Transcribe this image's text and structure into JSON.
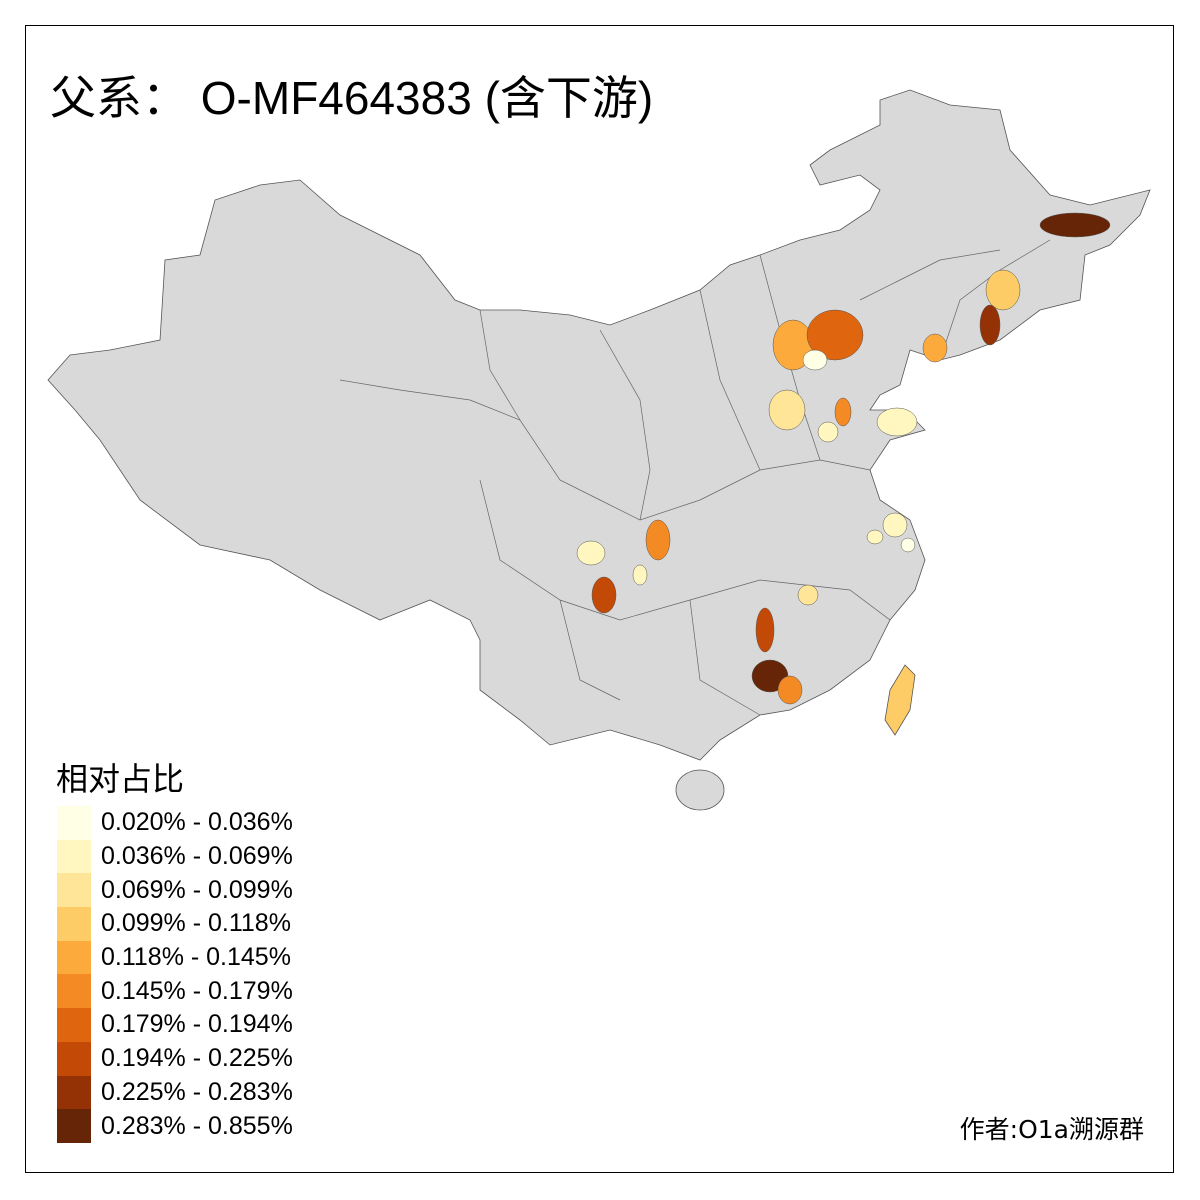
{
  "title": "父系： O-MF464383 (含下游)",
  "legend": {
    "title": "相对占比",
    "items": [
      {
        "label": "0.020% - 0.036%",
        "color": "#FFFFE5"
      },
      {
        "label": "0.036% - 0.069%",
        "color": "#FFF7BF"
      },
      {
        "label": "0.069% - 0.099%",
        "color": "#FEE598"
      },
      {
        "label": "0.099% - 0.118%",
        "color": "#FECC66"
      },
      {
        "label": "0.118% - 0.145%",
        "color": "#FDAA3C"
      },
      {
        "label": "0.145% - 0.179%",
        "color": "#F48A24"
      },
      {
        "label": "0.179% - 0.194%",
        "color": "#E0650F"
      },
      {
        "label": "0.194% - 0.225%",
        "color": "#C24906"
      },
      {
        "label": "0.225% - 0.283%",
        "color": "#943205"
      },
      {
        "label": "0.283% - 0.855%",
        "color": "#662506"
      }
    ]
  },
  "base_color": "#D9D9D9",
  "credit": "作者:O1a溯源群"
}
